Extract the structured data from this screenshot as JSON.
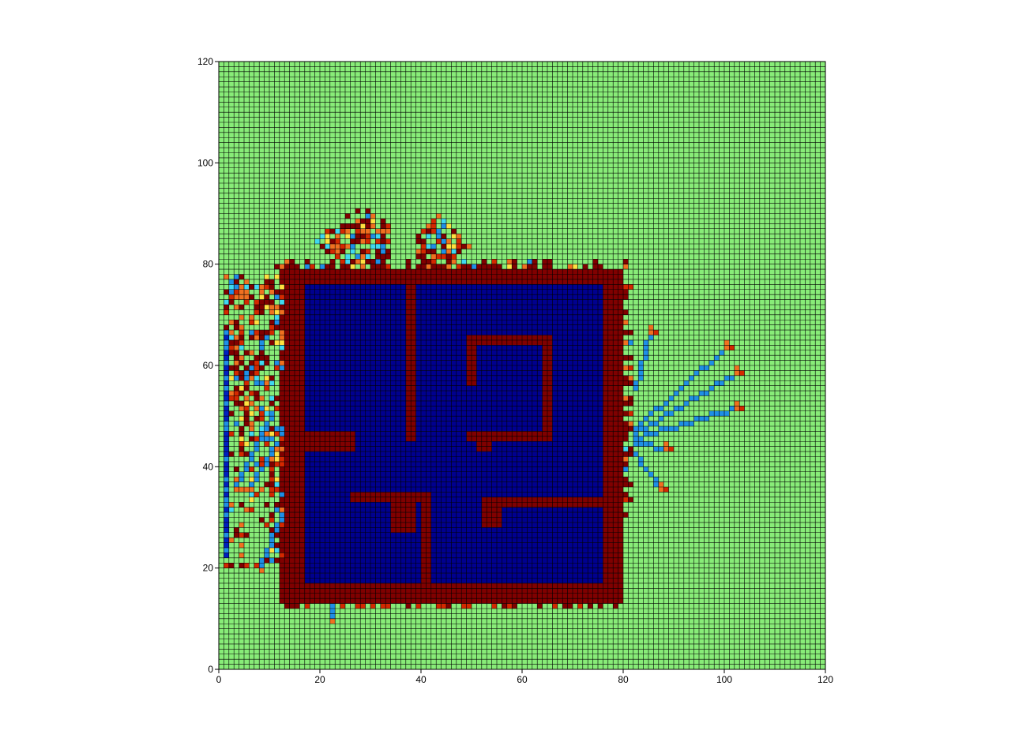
{
  "chart_data": {
    "type": "heatmap",
    "title": "",
    "xlabel": "",
    "ylabel": "",
    "xlim": [
      0,
      120
    ],
    "ylim": [
      0,
      120
    ],
    "grid_size": 120,
    "grid": true,
    "x_ticks": [
      "0",
      "20",
      "40",
      "60",
      "80",
      "100",
      "120"
    ],
    "y_ticks": [
      "0",
      "20",
      "40",
      "60",
      "80",
      "100",
      "120"
    ],
    "colors": {
      "background": "#88ec78",
      "wall": "#800000",
      "interior": "#00008f",
      "ray": "#1f8fe6",
      "ray_dark": "#0020c0",
      "edge_red": "#d42800",
      "edge_orange": "#f07020",
      "edge_yellow": "#ffe040",
      "edge_cyan": "#40d8f0",
      "gridline": "#000000"
    },
    "regions": {
      "outer_wall": {
        "x0": 12,
        "x1": 80,
        "y0": 13,
        "y1": 79
      },
      "interior": {
        "x0": 17,
        "x1": 76,
        "y0": 17,
        "y1": 76
      },
      "inner_walls": [
        {
          "x0": 37,
          "x1": 39,
          "y0": 45,
          "y1": 76
        },
        {
          "x0": 17,
          "x1": 27,
          "y0": 43,
          "y1": 47
        },
        {
          "x0": 49,
          "x1": 66,
          "y0": 64,
          "y1": 66
        },
        {
          "x0": 49,
          "x1": 51,
          "y0": 56,
          "y1": 64
        },
        {
          "x0": 64,
          "x1": 66,
          "y0": 45,
          "y1": 65
        },
        {
          "x0": 49,
          "x1": 65,
          "y0": 45,
          "y1": 47
        },
        {
          "x0": 51,
          "x1": 54,
          "y0": 43,
          "y1": 45
        },
        {
          "x0": 26,
          "x1": 42,
          "y0": 33,
          "y1": 35
        },
        {
          "x0": 40,
          "x1": 42,
          "y0": 17,
          "y1": 35
        },
        {
          "x0": 34,
          "x1": 39,
          "y0": 27,
          "y1": 33
        },
        {
          "x0": 54,
          "x1": 76,
          "y0": 32,
          "y1": 34
        },
        {
          "x0": 52,
          "x1": 56,
          "y0": 28,
          "y1": 34
        }
      ]
    }
  }
}
